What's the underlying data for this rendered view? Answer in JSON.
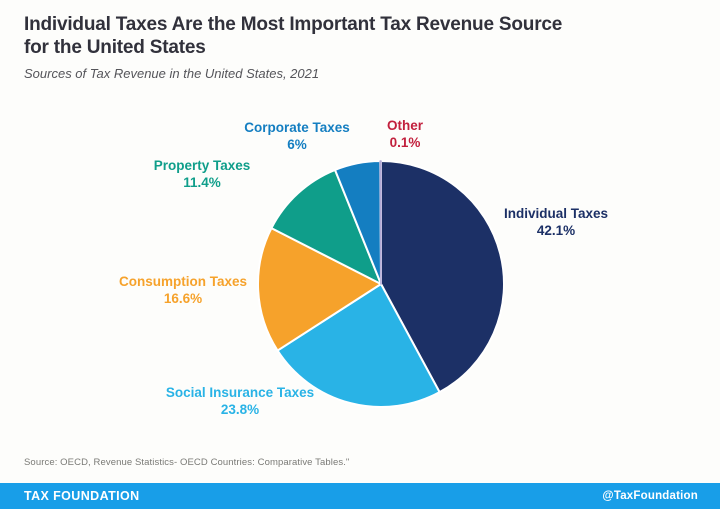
{
  "header": {
    "title_line1": "Individual Taxes Are the Most Important Tax Revenue Source",
    "title_line2": "for the United States",
    "subtitle": "Sources of Tax Revenue in the United States, 2021"
  },
  "chart_data": {
    "type": "pie",
    "title": "Sources of Tax Revenue in the United States, 2021",
    "start_angle_deg": -90,
    "direction": "clockwise",
    "legend_position": "labels-around-pie",
    "slices": [
      {
        "label": "Individual Taxes",
        "pct_label": "42.1%",
        "value": 42.1,
        "color": "#1C3066",
        "label_color": "#1C3066"
      },
      {
        "label": "Social Insurance Taxes",
        "pct_label": "23.8%",
        "value": 23.8,
        "color": "#29B3E6",
        "label_color": "#29B3E6"
      },
      {
        "label": "Consumption Taxes",
        "pct_label": "16.6%",
        "value": 16.6,
        "color": "#F6A22B",
        "label_color": "#F6A22B"
      },
      {
        "label": "Property Taxes",
        "pct_label": "11.4%",
        "value": 11.4,
        "color": "#0F9E8A",
        "label_color": "#0F9E8A"
      },
      {
        "label": "Corporate Taxes",
        "pct_label": "6%",
        "value": 6.0,
        "color": "#147EC1",
        "label_color": "#147EC1"
      },
      {
        "label": "Other",
        "pct_label": "0.1%",
        "value": 0.1,
        "color": "#B3AAD6",
        "label_color": "#C2203D"
      }
    ]
  },
  "source_note": "Source: OECD, Revenue Statistics- OECD Countries: Comparative Tables.\"",
  "footer": {
    "brand": "TAX FOUNDATION",
    "handle": "@TaxFoundation",
    "bar_color": "#189EE8"
  }
}
